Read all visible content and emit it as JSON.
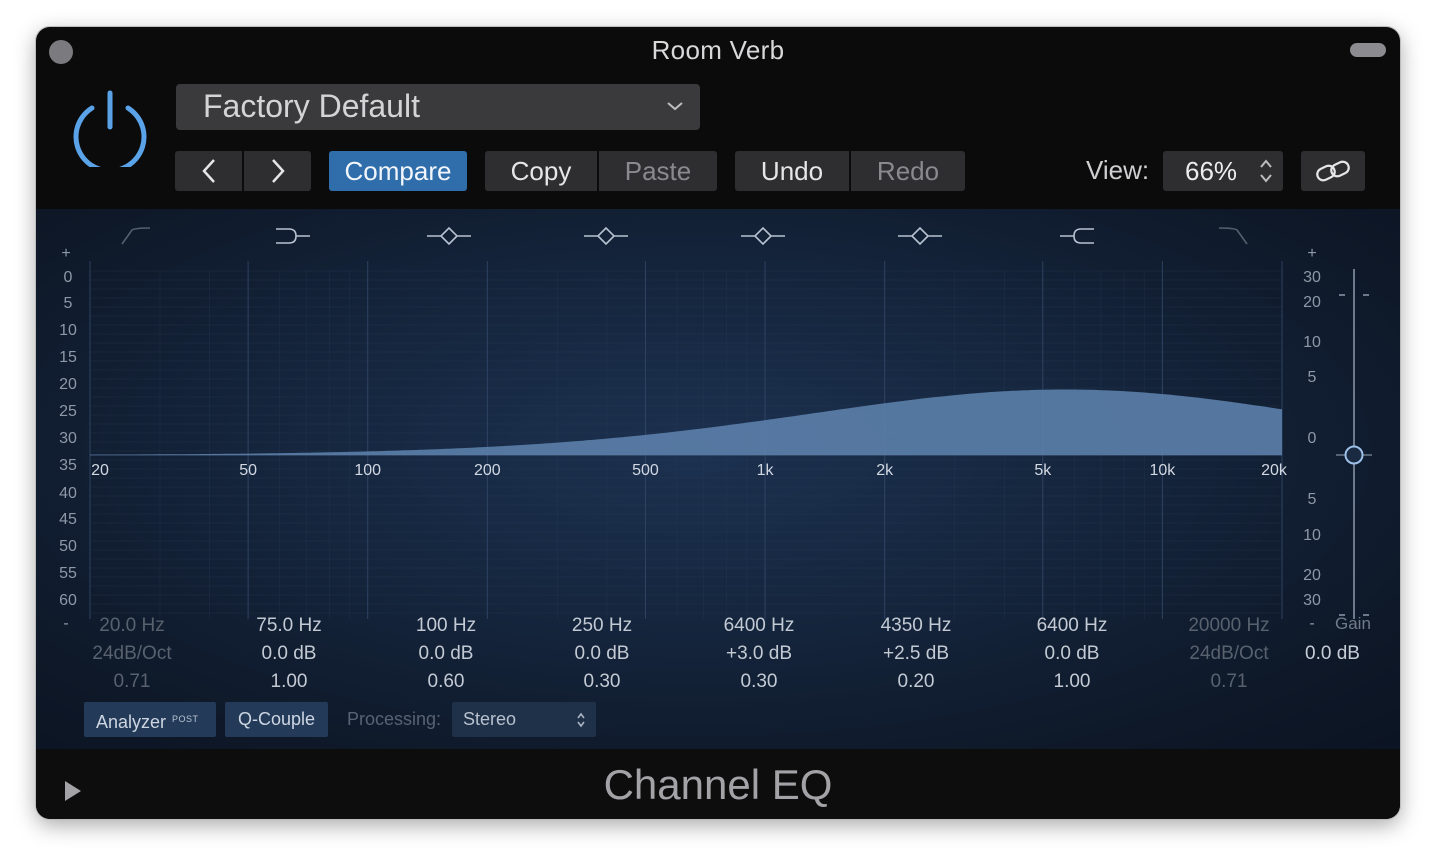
{
  "window": {
    "title": "Room Verb",
    "plugin_name": "Channel EQ"
  },
  "header": {
    "preset": "Factory Default",
    "compare_label": "Compare",
    "copy_label": "Copy",
    "paste_label": "Paste",
    "undo_label": "Undo",
    "redo_label": "Redo",
    "view_label": "View:",
    "view_value": "66%"
  },
  "graph": {
    "left_scale": [
      "+",
      "0",
      "5",
      "10",
      "15",
      "20",
      "25",
      "30",
      "35",
      "40",
      "45",
      "50",
      "55",
      "60",
      "-"
    ],
    "right_scale": [
      "+",
      "30",
      "20",
      "10",
      "5",
      "0",
      "5",
      "10",
      "20",
      "30",
      "-"
    ],
    "freq_labels": [
      "20",
      "50",
      "100",
      "200",
      "500",
      "1k",
      "2k",
      "5k",
      "10k",
      "20k"
    ]
  },
  "bands": [
    {
      "type": "low-cut",
      "freq": "20.0 Hz",
      "gain": "24dB/Oct",
      "q": "0.71",
      "enabled": false
    },
    {
      "type": "low-shelf",
      "freq": "75.0 Hz",
      "gain": "0.0 dB",
      "q": "1.00",
      "enabled": true
    },
    {
      "type": "bell",
      "freq": "100 Hz",
      "gain": "0.0 dB",
      "q": "0.60",
      "enabled": true
    },
    {
      "type": "bell",
      "freq": "250 Hz",
      "gain": "0.0 dB",
      "q": "0.30",
      "enabled": true
    },
    {
      "type": "bell",
      "freq": "6400 Hz",
      "gain": "+3.0 dB",
      "q": "0.30",
      "enabled": true
    },
    {
      "type": "bell",
      "freq": "4350 Hz",
      "gain": "+2.5 dB",
      "q": "0.20",
      "enabled": true
    },
    {
      "type": "high-shelf",
      "freq": "6400 Hz",
      "gain": "0.0 dB",
      "q": "1.00",
      "enabled": true
    },
    {
      "type": "high-cut",
      "freq": "20000 Hz",
      "gain": "24dB/Oct",
      "q": "0.71",
      "enabled": false
    }
  ],
  "gain": {
    "label": "Gain",
    "value": "0.0 dB"
  },
  "controls": {
    "analyzer_label": "Analyzer",
    "analyzer_badge": "POST",
    "qcouple_label": "Q-Couple",
    "processing_label": "Processing:",
    "processing_value": "Stereo"
  },
  "colors": {
    "accent": "#2f6dab",
    "curve_fill": "#5a7ea8",
    "power": "#5aa3e8"
  }
}
